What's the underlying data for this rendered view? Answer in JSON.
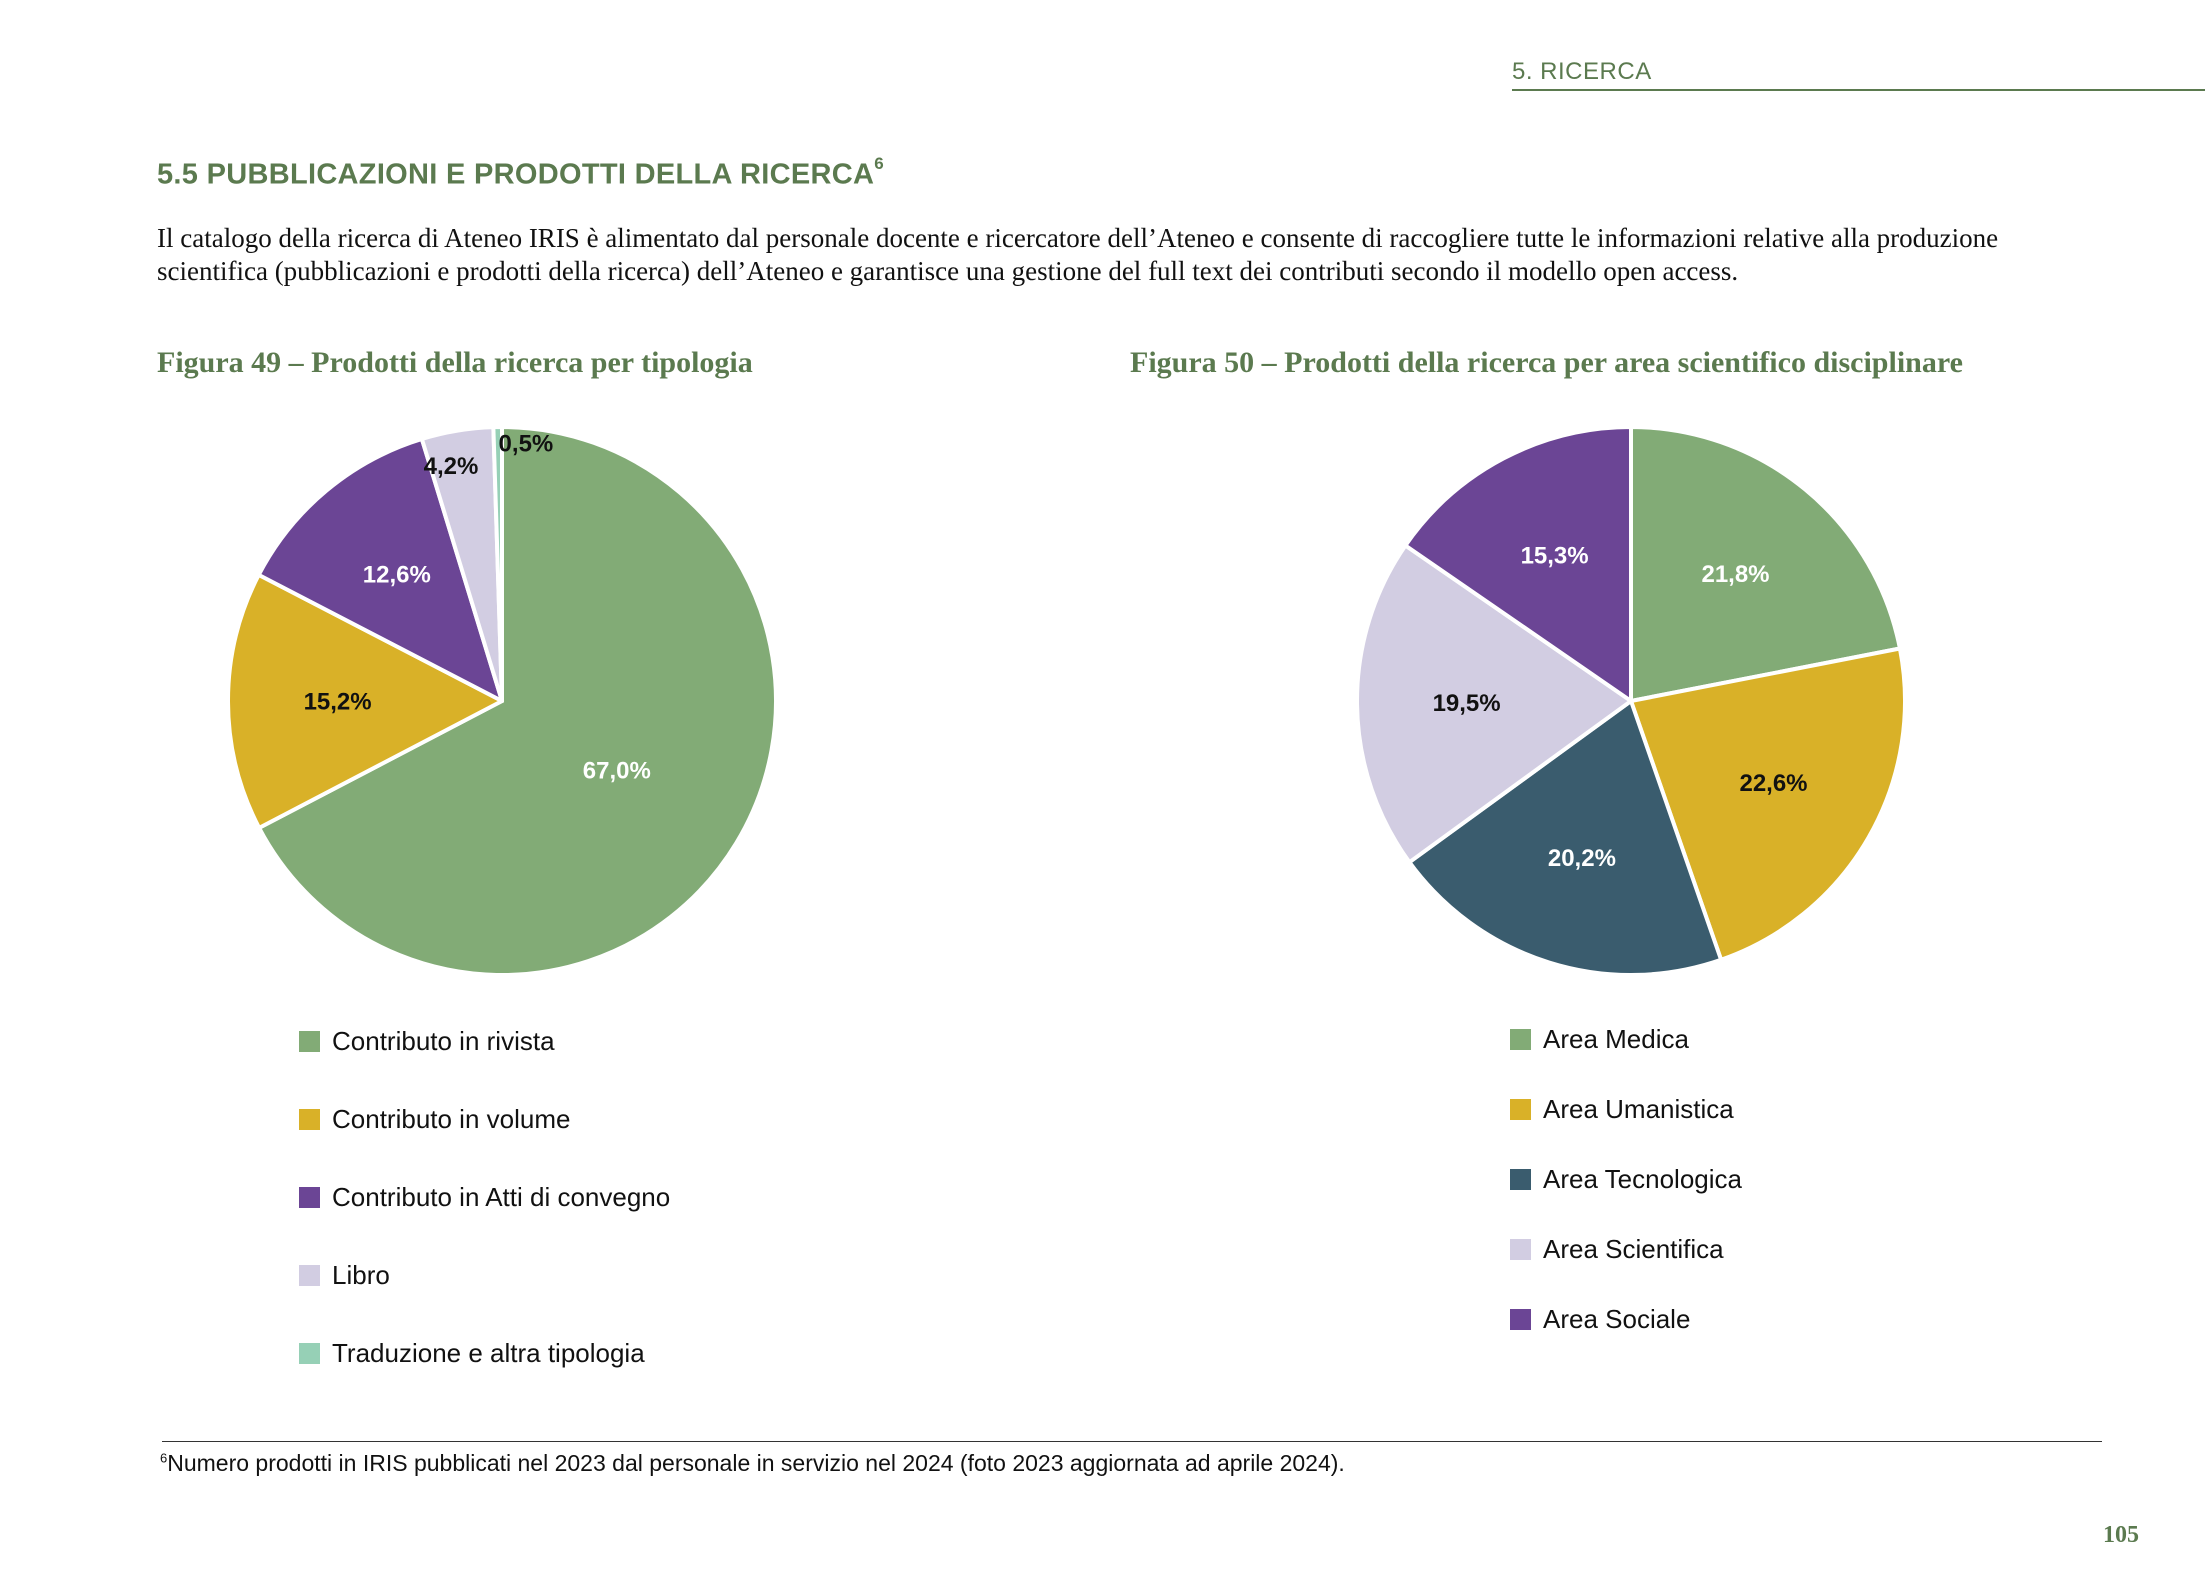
{
  "header": {
    "running_head": "5. RICERCA"
  },
  "section": {
    "heading": "5.5 PUBBLICAZIONI E PRODOTTI DELLA RICERCA",
    "footnote_mark": "6",
    "intro": "Il catalogo della ricerca di Ateneo IRIS è alimentato dal personale docente e ricercatore dell’Ateneo e consente di raccogliere tutte le informazioni relative alla produzione scientifica (pubblicazioni e prodotti della ricerca) dell’Ateneo e garantisce una gestione del full text dei contributi secondo il modello open access."
  },
  "chart_data": [
    {
      "type": "pie",
      "title": "Figura 49 – Prodotti della ricerca per tipologia",
      "legend_position": "bottom",
      "slices": [
        {
          "name": "Contributo in rivista",
          "value": 67.0,
          "label": "67,0%",
          "color": "#82ab76",
          "label_color": "#ffffff"
        },
        {
          "name": "Contributo in volume",
          "value": 15.2,
          "label": "15,2%",
          "color": "#d9b128",
          "label_color": "#111111"
        },
        {
          "name": "Contributo in Atti di convegno",
          "value": 12.6,
          "label": "12,6%",
          "color": "#6b4595",
          "label_color": "#ffffff"
        },
        {
          "name": "Libro",
          "value": 4.2,
          "label": "4,2%",
          "color": "#d2cde2",
          "label_color": "#111111"
        },
        {
          "name": "Traduzione e altra tipologia",
          "value": 0.5,
          "label": "0,5%",
          "color": "#96d0b6",
          "label_color": "#111111"
        }
      ]
    },
    {
      "type": "pie",
      "title": "Figura 50 – Prodotti della ricerca per area scientifico disciplinare",
      "legend_position": "bottom",
      "slices": [
        {
          "name": "Area Medica",
          "value": 21.8,
          "label": "21,8%",
          "color": "#82ab76",
          "label_color": "#ffffff"
        },
        {
          "name": "Area Umanistica",
          "value": 22.6,
          "label": "22,6%",
          "color": "#d9b128",
          "label_color": "#111111"
        },
        {
          "name": "Area Tecnologica",
          "value": 20.2,
          "label": "20,2%",
          "color": "#3a5c6e",
          "label_color": "#ffffff"
        },
        {
          "name": "Area Scientifica",
          "value": 19.5,
          "label": "19,5%",
          "color": "#d2cde2",
          "label_color": "#111111"
        },
        {
          "name": "Area Sociale",
          "value": 15.3,
          "label": "15,3%",
          "color": "#6b4595",
          "label_color": "#ffffff"
        }
      ]
    }
  ],
  "footnote": {
    "mark": "6",
    "text": "Numero prodotti in IRIS pubblicati nel 2023 dal personale in servizio nel 2024 (foto 2023 aggiornata ad aprile 2024)."
  },
  "page_number": "105"
}
